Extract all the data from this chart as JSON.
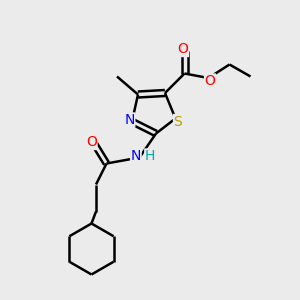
{
  "background_color": "#ebebeb",
  "atom_colors": {
    "O": "#ff0000",
    "N": "#0000ff",
    "S": "#b8a000",
    "C": "#000000",
    "H": "#00aaaa"
  },
  "bond_width": 1.8,
  "font_size_atoms": 10,
  "font_size_small": 8,
  "figsize": [
    3.0,
    3.0
  ],
  "dpi": 100,
  "xlim": [
    0,
    10
  ],
  "ylim": [
    0,
    10
  ]
}
